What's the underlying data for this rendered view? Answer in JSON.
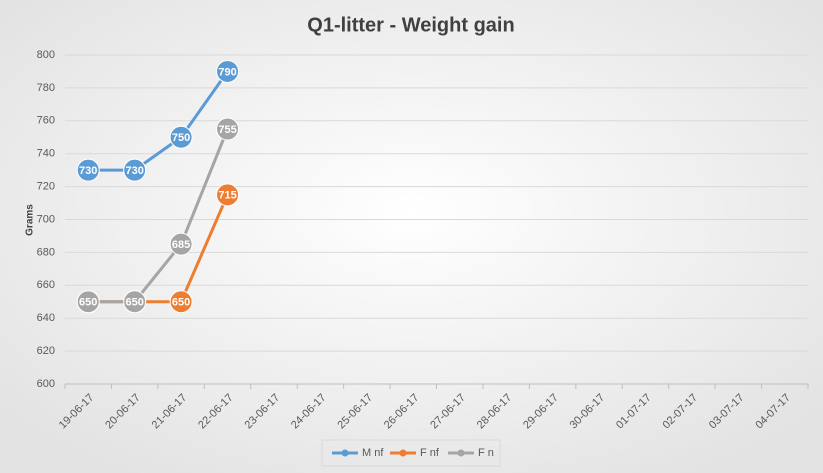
{
  "chart_data": {
    "type": "line",
    "title": "Q1-litter - Weight gain",
    "y_label": "Grams",
    "categories": [
      "19-06-17",
      "20-06-17",
      "21-06-17",
      "22-06-17",
      "23-06-17",
      "24-06-17",
      "25-06-17",
      "26-06-17",
      "27-06-17",
      "28-06-17",
      "29-06-17",
      "30-06-17",
      "01-07-17",
      "02-07-17",
      "03-07-17",
      "04-07-17"
    ],
    "series": [
      {
        "name": "M nf",
        "color": "#5b9bd5",
        "values": [
          730,
          730,
          750,
          790,
          null,
          null,
          null,
          null,
          null,
          null,
          null,
          null,
          null,
          null,
          null,
          null
        ]
      },
      {
        "name": "F nf",
        "color": "#ed7d31",
        "values": [
          650,
          650,
          650,
          715,
          null,
          null,
          null,
          null,
          null,
          null,
          null,
          null,
          null,
          null,
          null,
          null
        ]
      },
      {
        "name": "F n",
        "color": "#a5a5a5",
        "values": [
          650,
          650,
          685,
          755,
          null,
          null,
          null,
          null,
          null,
          null,
          null,
          null,
          null,
          null,
          null,
          null
        ]
      }
    ],
    "ylim": [
      600,
      800
    ],
    "yticks": [
      600,
      620,
      640,
      660,
      680,
      700,
      720,
      740,
      760,
      780,
      800
    ],
    "grid": true,
    "legend": "bottom",
    "data_labels": true
  }
}
